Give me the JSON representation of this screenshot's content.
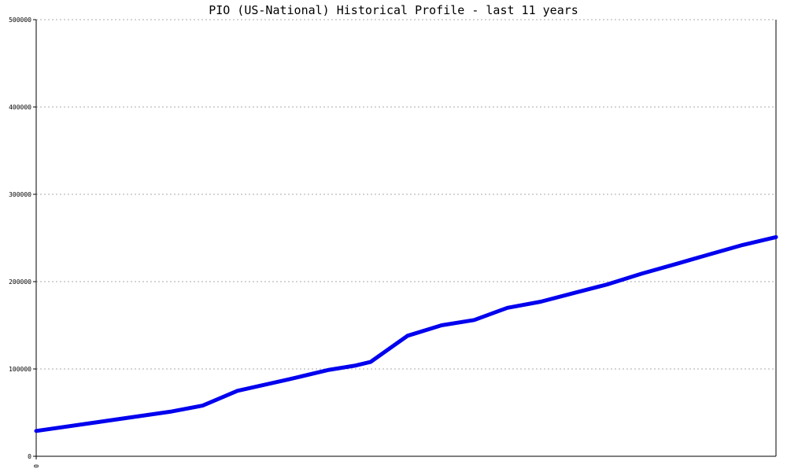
{
  "chart_data": {
    "type": "line",
    "title": "PIO (US-National) Historical Profile - last 11 years",
    "xlabel": "",
    "ylabel": "",
    "ylim": [
      0,
      500000
    ],
    "y_ticks": [
      0,
      100000,
      200000,
      300000,
      400000,
      500000
    ],
    "y_tick_labels": [
      "0",
      "100000",
      "200000",
      "300000",
      "400000",
      "500000"
    ],
    "x_tick_labels": [
      "0"
    ],
    "grid": true,
    "line_color": "#0000ee",
    "series": [
      {
        "name": "",
        "values": [
          29000,
          51000,
          58000,
          75000,
          88000,
          99000,
          104000,
          108000,
          138000,
          150000,
          156000,
          170000,
          177000,
          187000,
          197000,
          209000,
          220000,
          231000,
          242000,
          251000
        ]
      }
    ],
    "x_fraction": [
      0,
      0.181,
      0.225,
      0.272,
      0.341,
      0.396,
      0.432,
      0.452,
      0.502,
      0.548,
      0.592,
      0.637,
      0.682,
      0.727,
      0.773,
      0.818,
      0.864,
      0.909,
      0.955,
      1.0
    ]
  }
}
